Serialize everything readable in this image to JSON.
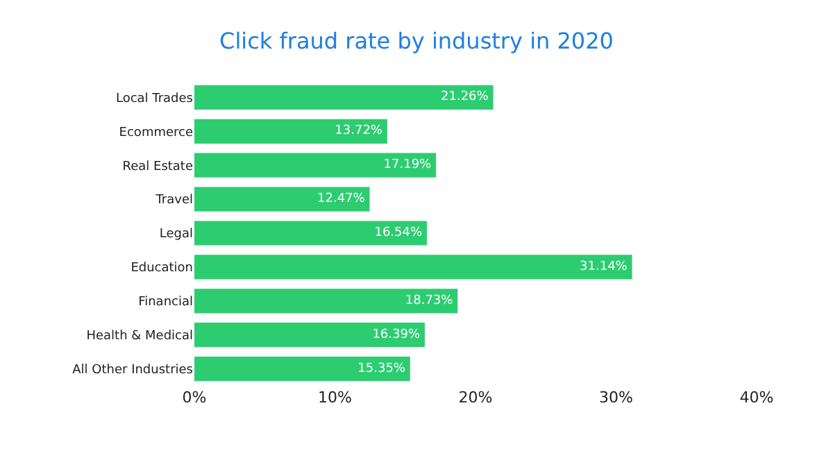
{
  "chart_data": {
    "type": "bar",
    "orientation": "horizontal",
    "title": "Click fraud rate by industry in 2020",
    "categories": [
      "Local Trades",
      "Ecommerce",
      "Real Estate",
      "Travel",
      "Legal",
      "Education",
      "Financial",
      "Health & Medical",
      "All Other Industries"
    ],
    "values": [
      21.26,
      13.72,
      17.19,
      12.47,
      16.54,
      31.14,
      18.73,
      16.39,
      15.35
    ],
    "value_labels": [
      "21.26%",
      "13.72%",
      "17.19%",
      "12.47%",
      "16.54%",
      "31.14%",
      "18.73%",
      "16.39%",
      "15.35%"
    ],
    "color": "#2ecc71",
    "xlim": [
      0,
      40
    ],
    "xticks": [
      {
        "value": 0,
        "label": "0%"
      },
      {
        "value": 10,
        "label": "10%"
      },
      {
        "value": 20,
        "label": "20%"
      },
      {
        "value": 30,
        "label": "30%"
      },
      {
        "value": 40,
        "label": "40%"
      }
    ],
    "grid": false,
    "legend": false
  }
}
